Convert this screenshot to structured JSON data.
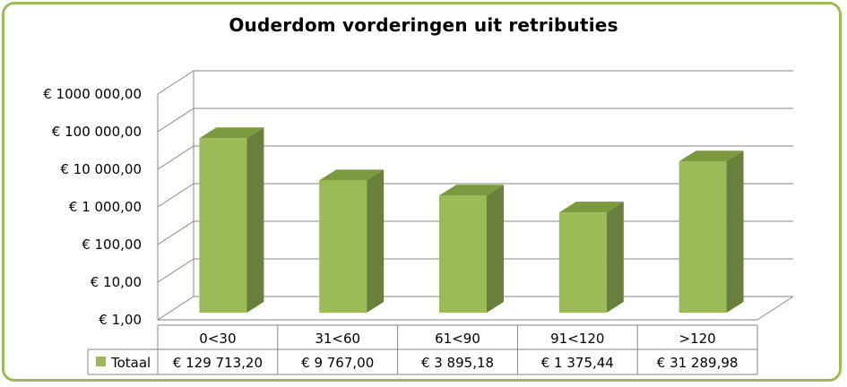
{
  "chart_data": {
    "type": "bar",
    "title": "Ouderdom vorderingen uit retributies",
    "categories": [
      "0<30",
      "31<60",
      "61<90",
      "91<120",
      ">120"
    ],
    "series": [
      {
        "name": "Totaal",
        "values": [
          129713.2,
          9767.0,
          3895.18,
          1375.44,
          31289.98
        ],
        "labels": [
          "€ 129 713,20",
          "€ 9 767,00",
          "€ 3 895,18",
          "€ 1 375,44",
          "€ 31 289,98"
        ]
      }
    ],
    "y_scale": "log",
    "ylim": [
      1,
      1000000
    ],
    "y_tick_labels": [
      "€  1,00",
      "€  10,00",
      "€ 100,00",
      "€ 1 000,00",
      "€ 10 000,00",
      "€ 100 000,00",
      "€ 1000 000,00"
    ],
    "grid": true,
    "legend": "data-table",
    "bar_color": "#9bbb59",
    "bar_side_color": "#6a7f3c",
    "bar_top_color": "#7a9a3d",
    "frame_color": "#9bbb59"
  }
}
